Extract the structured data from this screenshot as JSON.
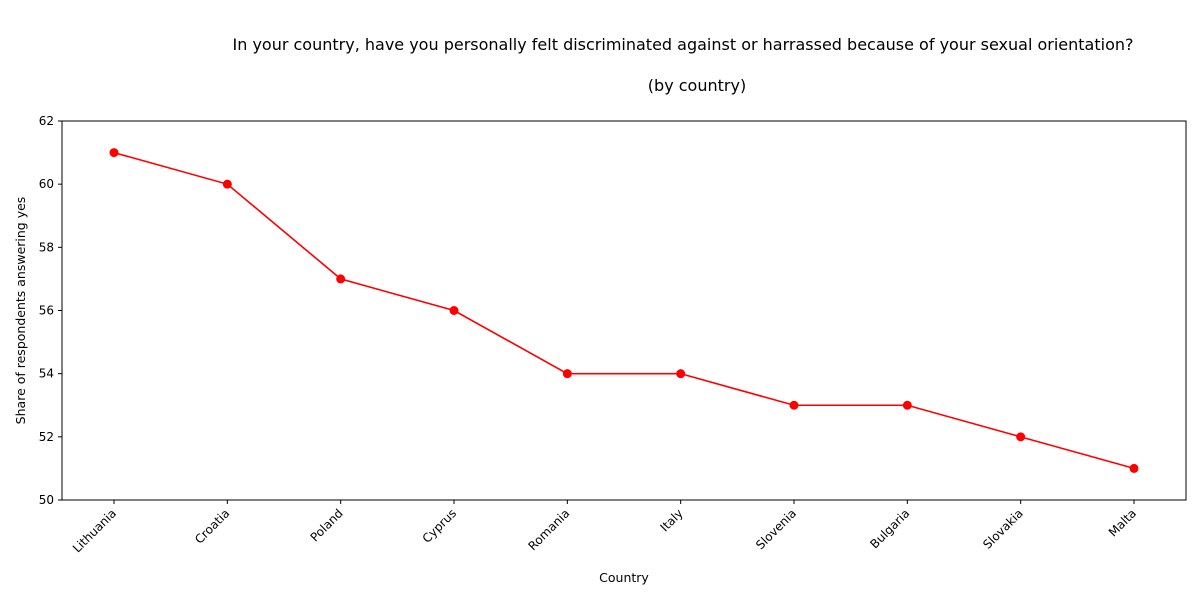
{
  "chart_data": {
    "type": "line",
    "title": "In your country, have you personally felt discriminated against or harrassed because of your sexual orientation?",
    "subtitle": "(by country)",
    "xlabel": "Country",
    "ylabel": "Share of respondents answering yes",
    "categories": [
      "Lithuania",
      "Croatia",
      "Poland",
      "Cyprus",
      "Romania",
      "Italy",
      "Slovenia",
      "Bulgaria",
      "Slovakia",
      "Malta"
    ],
    "series": [
      {
        "values": [
          61,
          60,
          57,
          56,
          54,
          54,
          53,
          53,
          52,
          51
        ],
        "color": "#ff0000"
      }
    ],
    "ylim": [
      50,
      62
    ],
    "yticks": [
      "50",
      "52",
      "54",
      "56",
      "58",
      "60",
      "62"
    ],
    "grid": false,
    "marker": "circle"
  }
}
